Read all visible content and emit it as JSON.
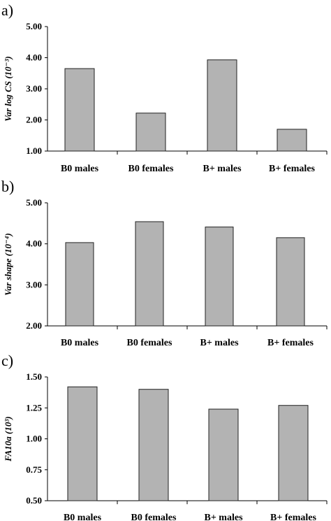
{
  "chart_data": [
    {
      "type": "bar",
      "panel_label": "a)",
      "ylabel": "Var log CS (10⁻³)",
      "categories": [
        "B0 males",
        "B0 females",
        "B+ males",
        "B+ females"
      ],
      "values": [
        3.65,
        2.22,
        3.93,
        1.7
      ],
      "ylim": [
        1.0,
        5.0
      ],
      "yticks": [
        "1.00",
        "2.00",
        "3.00",
        "4.00",
        "5.00"
      ],
      "grid": false,
      "bar_color": "#b3b3b3"
    },
    {
      "type": "bar",
      "panel_label": "b)",
      "ylabel": "Var shape (10⁻⁴)",
      "categories": [
        "B0 males",
        "B0 females",
        "B+ males",
        "B+ females"
      ],
      "values": [
        4.03,
        4.54,
        4.41,
        4.15
      ],
      "ylim": [
        2.0,
        5.0
      ],
      "yticks": [
        "2.00",
        "3.00",
        "4.00",
        "5.00"
      ],
      "grid": false,
      "bar_color": "#b3b3b3"
    },
    {
      "type": "bar",
      "panel_label": "c)",
      "ylabel": "FA10a (10³)",
      "categories": [
        "B0 males",
        "B0 females",
        "B+ males",
        "B+ females"
      ],
      "values": [
        1.42,
        1.4,
        1.24,
        1.27
      ],
      "ylim": [
        0.5,
        1.5
      ],
      "yticks": [
        "0.50",
        "0.75",
        "1.00",
        "1.25",
        "1.50"
      ],
      "grid": false,
      "bar_color": "#b3b3b3"
    }
  ]
}
